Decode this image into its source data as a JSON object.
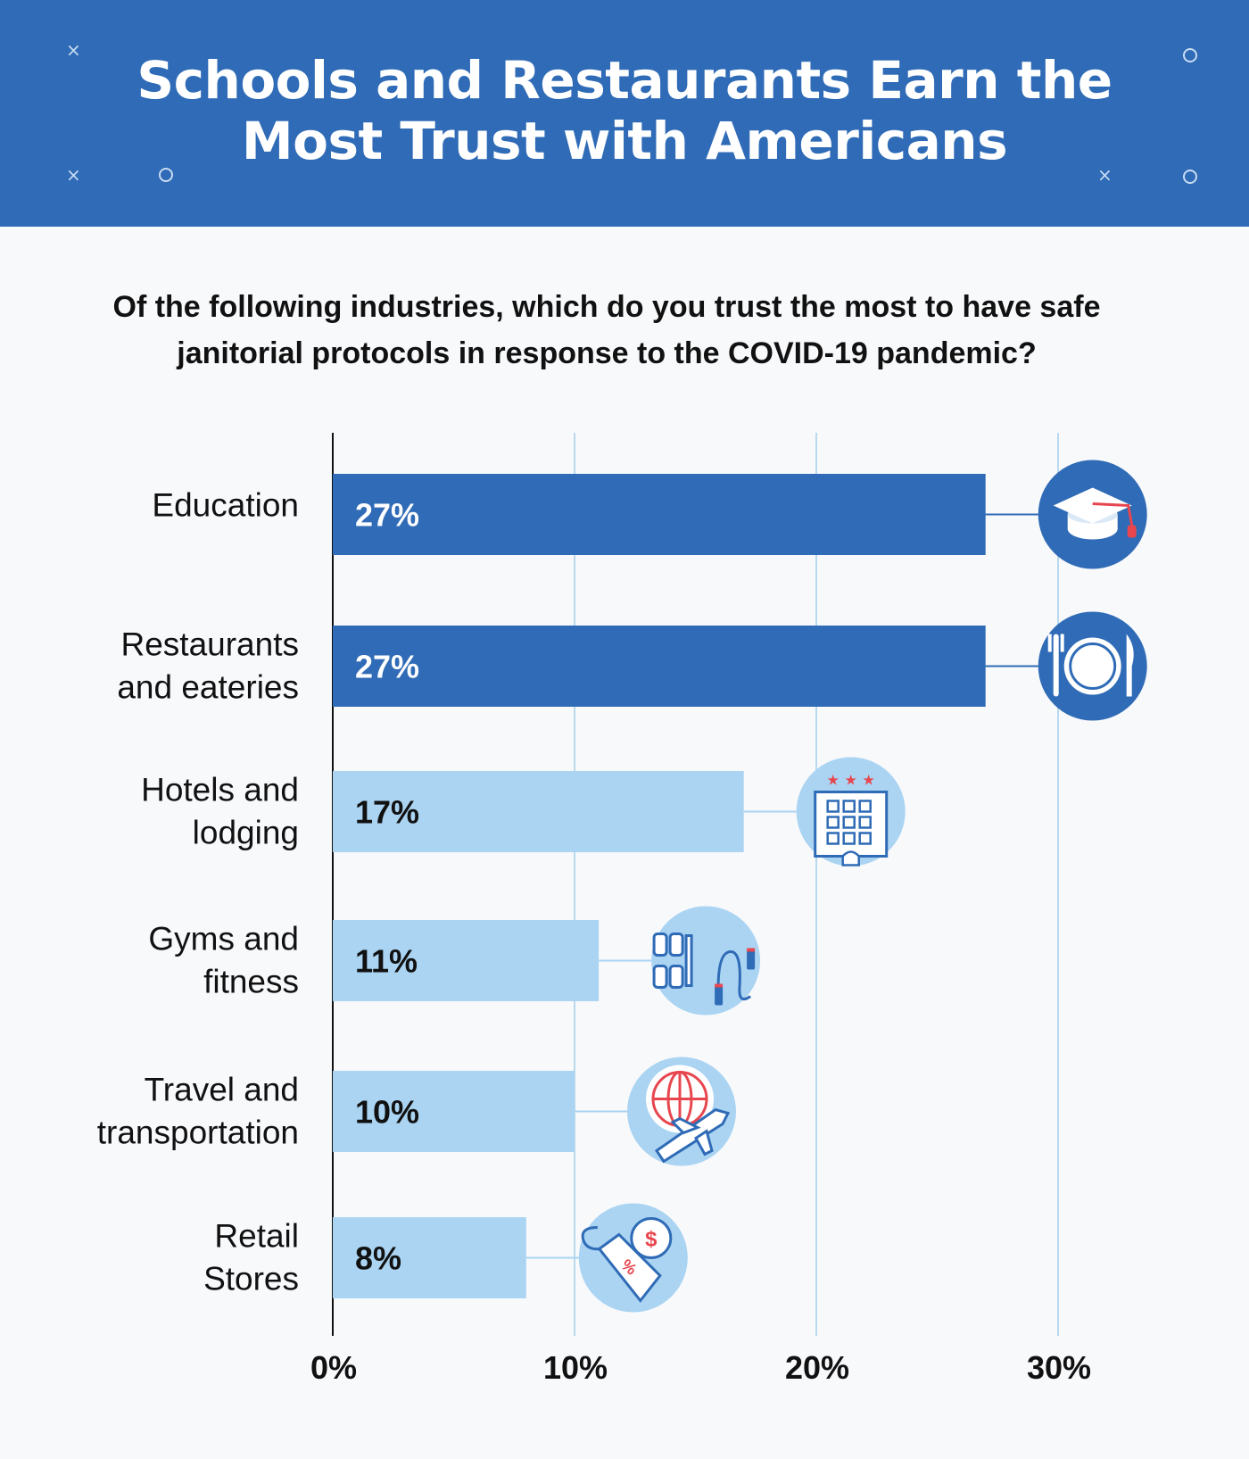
{
  "title": "Schools and Restaurants Earn the Most Trust with Americans",
  "subtitle": "Of the following industries, which do you trust the most to have safe janitorial protocols in response to the COVID-19 pandemic?",
  "colors": {
    "header": "#2f6bb6",
    "bar_dark": "#2f6bb6",
    "bar_light": "#aad4f2",
    "gridline": "#b9d9ee",
    "label_dark_bar": "#ffffff",
    "label_light_bar": "#111111"
  },
  "chart_data": {
    "type": "bar",
    "orientation": "horizontal",
    "categories": [
      [
        "Education"
      ],
      [
        "Restaurants",
        "and eateries"
      ],
      [
        "Hotels and",
        "lodging"
      ],
      [
        "Gyms and",
        "fitness"
      ],
      [
        "Travel and",
        "transportation"
      ],
      [
        "Retail",
        "Stores"
      ]
    ],
    "values": [
      27,
      27,
      17,
      11,
      10,
      8
    ],
    "value_labels": [
      "27%",
      "27%",
      "17%",
      "11%",
      "10%",
      "8%"
    ],
    "icons": [
      "graduation-cap-icon",
      "plate-and-cutlery-icon",
      "hotel-building-icon",
      "dumbbell-and-jump-rope-icon",
      "globe-and-airplane-icon",
      "price-tag-icon"
    ],
    "highlight": [
      true,
      true,
      false,
      false,
      false,
      false
    ],
    "xlim": [
      0,
      30
    ],
    "xticks": [
      0,
      10,
      20,
      30
    ],
    "xtick_labels": [
      "0%",
      "10%",
      "20%",
      "30%"
    ],
    "grid": true
  }
}
